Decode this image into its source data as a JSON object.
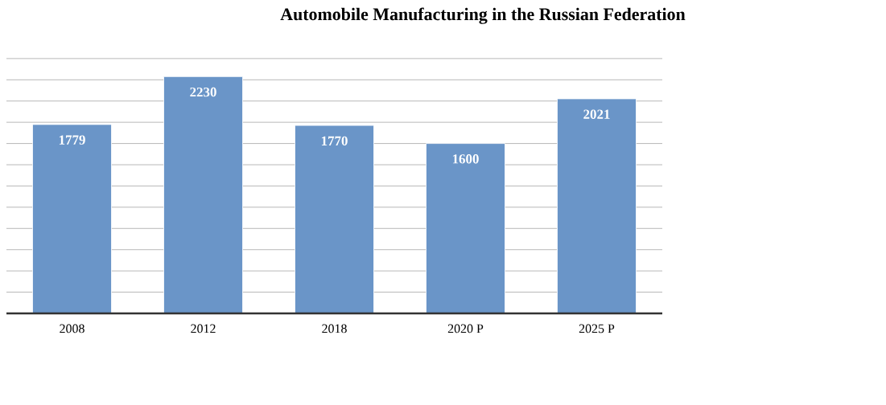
{
  "chart_data": {
    "type": "bar",
    "title": "Automobile Manufacturing in the Russian Federation",
    "categories": [
      "2008",
      "2012",
      "2018",
      "2020 P",
      "2025 P"
    ],
    "values": [
      1779,
      2230,
      1770,
      1600,
      2021
    ],
    "color": "#6a95c8",
    "tick_labels": "x",
    "grid": "y",
    "data_labels": true
  }
}
